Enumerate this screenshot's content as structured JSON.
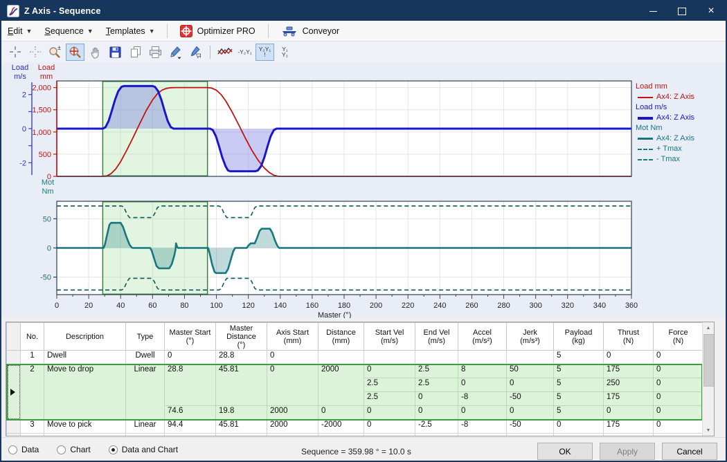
{
  "window": {
    "title": "Z Axis - Sequence"
  },
  "menu": {
    "items": [
      {
        "label": "Edit"
      },
      {
        "label": "Sequence"
      },
      {
        "label": "Templates"
      }
    ],
    "actions": [
      {
        "label": "Optimizer PRO"
      },
      {
        "label": "Conveyor"
      }
    ]
  },
  "toolbar": {
    "text_tools": {
      "hide_y2y1": "-Y₂Y₁",
      "split_y2y1": "Y₂Y₁\n!",
      "stack_y1y2": "Y₁\nY₂"
    }
  },
  "axis_labels": {
    "velocity": "Load\nm/s",
    "position": "Load\nmm",
    "torque": "Mot\nNm",
    "master": "Master  (°)"
  },
  "legend": {
    "groups": [
      {
        "title": "Load mm",
        "color": "#c11212",
        "entries": [
          {
            "label": "Ax4: Z Axis",
            "style": "solid",
            "weight": 2
          }
        ]
      },
      {
        "title": "Load m/s",
        "color": "#1a16cc",
        "entries": [
          {
            "label": "Ax4: Z Axis",
            "style": "solid",
            "weight": 4
          }
        ]
      },
      {
        "title": "Mot Nm",
        "color": "#17767e",
        "entries": [
          {
            "label": "Ax4: Z Axis",
            "style": "solid",
            "weight": 3
          },
          {
            "label": "+ Tmax",
            "style": "dashed",
            "weight": 2
          },
          {
            "label": "- Tmax",
            "style": "dashed",
            "weight": 2
          }
        ]
      }
    ]
  },
  "chart_data": [
    {
      "type": "line",
      "title": "Load position and velocity vs master angle",
      "x": {
        "min": 0,
        "max": 360,
        "major": 20,
        "minor": 10,
        "label": "Master  (°)"
      },
      "axes": {
        "mm": {
          "min": 0,
          "max": 2150,
          "ticks": [
            {
              "v": 0,
              "t": "0"
            },
            {
              "v": 500,
              "t": "500"
            },
            {
              "v": 1000,
              "t": "1,000"
            },
            {
              "v": 1500,
              "t": "1,500"
            },
            {
              "v": 2000,
              "t": "2,000"
            }
          ]
        },
        "ms": {
          "min": -2.8,
          "max": 2.8,
          "ticks": [
            {
              "v": -2,
              "t": "-2"
            },
            {
              "v": -1,
              "t": ""
            },
            {
              "v": 0,
              "t": "0"
            },
            {
              "v": 1,
              "t": ""
            },
            {
              "v": 2,
              "t": "2"
            }
          ]
        }
      },
      "grid_y": {
        "scale": "mm",
        "values": [
          500,
          1000,
          1500,
          2000
        ]
      },
      "region": {
        "from": 28.8,
        "to": 94.4
      },
      "series": [
        {
          "name": "Load mm — Ax4: Z Axis",
          "scale": "mm",
          "color": "#c11212",
          "width": 1.8,
          "fill": null,
          "points": [
            [
              0,
              0
            ],
            [
              28.8,
              0
            ],
            [
              31,
              5
            ],
            [
              34,
              60
            ],
            [
              37,
              170
            ],
            [
              40,
              330
            ],
            [
              44,
              600
            ],
            [
              48,
              890
            ],
            [
              52,
              1190
            ],
            [
              56,
              1480
            ],
            [
              60,
              1720
            ],
            [
              63,
              1860
            ],
            [
              66,
              1945
            ],
            [
              69,
              1985
            ],
            [
              71.5,
              1998
            ],
            [
              74.6,
              2000
            ],
            [
              94.4,
              2000
            ],
            [
              97,
              1990
            ],
            [
              100,
              1940
            ],
            [
              103,
              1840
            ],
            [
              106,
              1690
            ],
            [
              110,
              1440
            ],
            [
              114,
              1160
            ],
            [
              118,
              870
            ],
            [
              122,
              600
            ],
            [
              126,
              370
            ],
            [
              130,
              190
            ],
            [
              133,
              90
            ],
            [
              136,
              25
            ],
            [
              138.5,
              3
            ],
            [
              140.2,
              0
            ],
            [
              360,
              0
            ]
          ]
        },
        {
          "name": "Load m/s — Ax4: Z Axis",
          "scale": "ms",
          "color": "#1a16cc",
          "width": 3,
          "fill": "rgba(115,118,226,0.38)",
          "points": [
            [
              0,
              0
            ],
            [
              28.8,
              0
            ],
            [
              30.5,
              0.08
            ],
            [
              32.5,
              0.45
            ],
            [
              34.5,
              1.05
            ],
            [
              36.5,
              1.7
            ],
            [
              38.5,
              2.2
            ],
            [
              40.5,
              2.45
            ],
            [
              42,
              2.5
            ],
            [
              60,
              2.5
            ],
            [
              61.5,
              2.45
            ],
            [
              63.5,
              2.2
            ],
            [
              65.5,
              1.7
            ],
            [
              67.5,
              1.05
            ],
            [
              69.5,
              0.45
            ],
            [
              71.5,
              0.08
            ],
            [
              73.2,
              0
            ],
            [
              96,
              0
            ],
            [
              97.7,
              -0.08
            ],
            [
              99.7,
              -0.45
            ],
            [
              101.7,
              -1.05
            ],
            [
              103.7,
              -1.7
            ],
            [
              105.7,
              -2.2
            ],
            [
              107.2,
              -2.45
            ],
            [
              108.7,
              -2.5
            ],
            [
              124.5,
              -2.5
            ],
            [
              126,
              -2.45
            ],
            [
              128,
              -2.2
            ],
            [
              130,
              -1.7
            ],
            [
              132,
              -1.05
            ],
            [
              134,
              -0.45
            ],
            [
              136,
              -0.08
            ],
            [
              137.7,
              0
            ],
            [
              360,
              0
            ]
          ]
        }
      ]
    },
    {
      "type": "line",
      "title": "Motor torque vs master angle",
      "x": {
        "min": 0,
        "max": 360,
        "major": 20,
        "minor": 10,
        "label": "Master  (°)"
      },
      "axes": {
        "nm": {
          "min": -80,
          "max": 80,
          "ticks": [
            {
              "v": -50,
              "t": "-50"
            },
            {
              "v": 0,
              "t": "0"
            },
            {
              "v": 50,
              "t": "50"
            }
          ]
        }
      },
      "grid_y": {
        "scale": "nm",
        "values": [
          -50,
          0,
          50
        ]
      },
      "region": {
        "from": 28.8,
        "to": 94.4
      },
      "series": [
        {
          "name": "Mot Nm — Ax4: Z Axis",
          "scale": "nm",
          "color": "#17767e",
          "width": 2.6,
          "fill": "rgba(27,119,127,0.28)",
          "points": [
            [
              0,
              0
            ],
            [
              29.3,
              0
            ],
            [
              30.2,
              6
            ],
            [
              31.5,
              22
            ],
            [
              33,
              40
            ],
            [
              34,
              43
            ],
            [
              40,
              43
            ],
            [
              41.5,
              36
            ],
            [
              43.5,
              20
            ],
            [
              45.5,
              6
            ],
            [
              47,
              0.5
            ],
            [
              48,
              0
            ],
            [
              58.5,
              0
            ],
            [
              59.5,
              -5
            ],
            [
              61,
              -18
            ],
            [
              62.5,
              -31
            ],
            [
              64,
              -35
            ],
            [
              70.5,
              -35
            ],
            [
              72,
              -28
            ],
            [
              73.5,
              -14
            ],
            [
              74.4,
              -3
            ],
            [
              74.7,
              8
            ],
            [
              75.4,
              2
            ],
            [
              76,
              0
            ],
            [
              94.8,
              0
            ],
            [
              95.8,
              -10
            ],
            [
              97.3,
              -28
            ],
            [
              98.8,
              -41
            ],
            [
              99.8,
              -43
            ],
            [
              105.8,
              -43
            ],
            [
              107.3,
              -36
            ],
            [
              109,
              -20
            ],
            [
              110.5,
              -6
            ],
            [
              111.7,
              0
            ],
            [
              119,
              0
            ],
            [
              120,
              4
            ],
            [
              121.5,
              8
            ],
            [
              124,
              8
            ],
            [
              125.3,
              16
            ],
            [
              127,
              29
            ],
            [
              128.3,
              33
            ],
            [
              133.5,
              33
            ],
            [
              135,
              26
            ],
            [
              136.8,
              12
            ],
            [
              138.3,
              3
            ],
            [
              139.3,
              0
            ],
            [
              360,
              0
            ]
          ]
        },
        {
          "name": "+ Tmax",
          "scale": "nm",
          "color": "#0d585e",
          "width": 1.6,
          "dash": "6 4",
          "points": [
            [
              0,
              72
            ],
            [
              40.5,
              72
            ],
            [
              42,
              70
            ],
            [
              44,
              58
            ],
            [
              45.5,
              52
            ],
            [
              59.5,
              52
            ],
            [
              61,
              57
            ],
            [
              63,
              69
            ],
            [
              64.5,
              72
            ],
            [
              101.5,
              72
            ],
            [
              103,
              70
            ],
            [
              105,
              58
            ],
            [
              106.5,
              52
            ],
            [
              120.5,
              52
            ],
            [
              122,
              57
            ],
            [
              124,
              69
            ],
            [
              125.5,
              72
            ],
            [
              360,
              72
            ]
          ]
        },
        {
          "name": "- Tmax",
          "scale": "nm",
          "color": "#0d585e",
          "width": 1.6,
          "dash": "6 4",
          "points": [
            [
              0,
              -72
            ],
            [
              40.5,
              -72
            ],
            [
              42,
              -70
            ],
            [
              44,
              -58
            ],
            [
              45.5,
              -52
            ],
            [
              59.5,
              -52
            ],
            [
              61,
              -57
            ],
            [
              63,
              -69
            ],
            [
              64.5,
              -72
            ],
            [
              101.5,
              -72
            ],
            [
              103,
              -70
            ],
            [
              105,
              -58
            ],
            [
              106.5,
              -52
            ],
            [
              120.5,
              -52
            ],
            [
              122,
              -57
            ],
            [
              124,
              -69
            ],
            [
              125.5,
              -72
            ],
            [
              360,
              -72
            ]
          ]
        }
      ]
    }
  ],
  "table": {
    "headers": [
      "No.",
      "Description",
      "Type",
      "Master Start\n(°)",
      "Master\nDistance\n(°)",
      "Axis Start\n(mm)",
      "Distance\n(mm)",
      "Start Vel\n(m/s)",
      "End Vel\n(m/s)",
      "Accel\n(m/s²)",
      "Jerk\n(m/s³)",
      "Payload\n(kg)",
      "Thrust\n(N)",
      "Force\n(N)"
    ],
    "rows": [
      {
        "lines": 1,
        "selected": false,
        "marker": false,
        "cells": [
          {
            "t": "1"
          },
          {
            "t": "Dwell"
          },
          {
            "t": "Dwell"
          },
          {
            "t": "0"
          },
          {
            "t": "28.8"
          },
          {
            "t": "0"
          },
          {
            "t": ""
          },
          {
            "t": ""
          },
          {
            "t": ""
          },
          {
            "t": ""
          },
          {
            "t": ""
          },
          {
            "t": "5"
          },
          {
            "t": "0"
          },
          {
            "t": "0"
          }
        ]
      },
      {
        "lines": 4,
        "selected": true,
        "marker": true,
        "cells": [
          {
            "t": "2",
            "rs": 4
          },
          {
            "t": "Move to drop",
            "rs": 4
          },
          {
            "t": "Linear",
            "rs": 4
          },
          {
            "t": "28.8",
            "rs": 3
          },
          {
            "t": "45.81",
            "rs": 3
          },
          {
            "t": "0",
            "rs": 3
          },
          {
            "t": "2000",
            "rs": 3
          },
          {
            "t": "0"
          },
          {
            "t": "2.5"
          },
          {
            "t": "8"
          },
          {
            "t": "50"
          },
          {
            "t": "5"
          },
          {
            "t": "175"
          },
          {
            "t": "0"
          }
        ]
      },
      {
        "selected": true,
        "cells": [
          {
            "t": "2.5"
          },
          {
            "t": "2.5"
          },
          {
            "t": "0"
          },
          {
            "t": "0"
          },
          {
            "t": "5"
          },
          {
            "t": "250"
          },
          {
            "t": "0"
          }
        ]
      },
      {
        "selected": true,
        "cells": [
          {
            "t": "2.5"
          },
          {
            "t": "0"
          },
          {
            "t": "-8"
          },
          {
            "t": "-50"
          },
          {
            "t": "5"
          },
          {
            "t": "175"
          },
          {
            "t": "0"
          }
        ]
      },
      {
        "selected": true,
        "cells": [
          {
            "t": "74.6"
          },
          {
            "t": "19.8"
          },
          {
            "t": "2000"
          },
          {
            "t": "0"
          },
          {
            "t": "0"
          },
          {
            "t": "0"
          },
          {
            "t": "0"
          },
          {
            "t": "0"
          },
          {
            "t": "5"
          },
          {
            "t": "0"
          },
          {
            "t": "0"
          }
        ]
      },
      {
        "lines": 1,
        "selected": false,
        "marker": false,
        "cells": [
          {
            "t": "3"
          },
          {
            "t": "Move to pick"
          },
          {
            "t": "Linear"
          },
          {
            "t": "94.4"
          },
          {
            "t": "45.81"
          },
          {
            "t": "2000"
          },
          {
            "t": "-2000"
          },
          {
            "t": "0"
          },
          {
            "t": "-2.5"
          },
          {
            "t": "-8"
          },
          {
            "t": "-50"
          },
          {
            "t": "0"
          },
          {
            "t": "175"
          },
          {
            "t": "0"
          }
        ]
      }
    ],
    "partial_row": true
  },
  "footer": {
    "radios": [
      {
        "label": "Data",
        "checked": false
      },
      {
        "label": "Chart",
        "checked": false
      },
      {
        "label": "Data and Chart",
        "checked": true
      }
    ],
    "status": "Sequence = 359.98 ° = 10.0 s",
    "buttons": [
      {
        "label": "OK",
        "enabled": true
      },
      {
        "label": "Apply",
        "enabled": false
      },
      {
        "label": "Cancel",
        "enabled": true
      }
    ]
  }
}
